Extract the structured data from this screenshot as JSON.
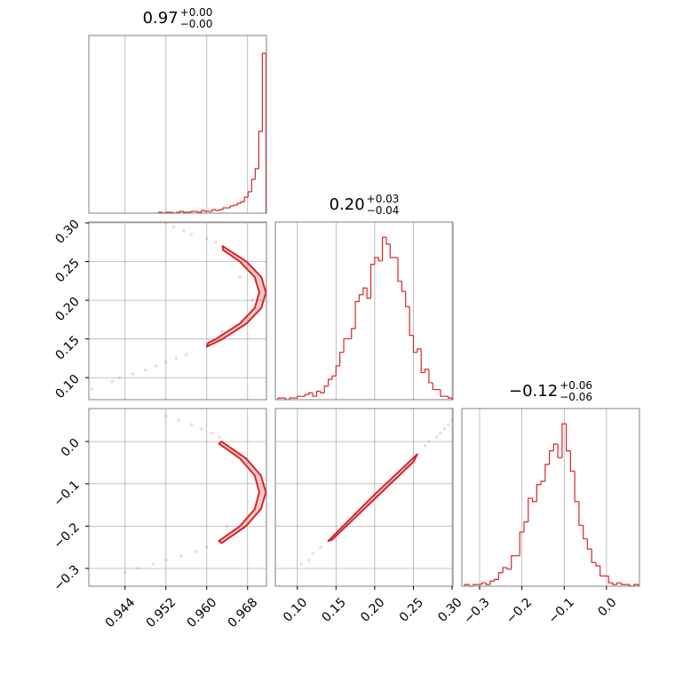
{
  "chart_data": {
    "type": "corner",
    "color": "#d62728",
    "grid": true,
    "parameters": [
      {
        "title": {
          "median": "0.97",
          "plus": "+0.00",
          "minus": "−0.00"
        },
        "lim": [
          0.9369,
          0.9717
        ],
        "ticks": [
          0.944,
          0.952,
          {
            "value": 0.96,
            "label": "0.960"
          },
          0.968
        ],
        "bins": [
          0.9506,
          0.9513,
          0.952,
          0.9527,
          0.9534,
          0.9541,
          0.9548,
          0.9555,
          0.9562,
          0.9569,
          0.9576,
          0.9583,
          0.959,
          0.9597,
          0.9604,
          0.9611,
          0.9618,
          0.9625,
          0.9632,
          0.9639,
          0.9646,
          0.9653,
          0.966,
          0.9667,
          0.9674,
          0.9681,
          0.9688,
          0.9695,
          0.9702,
          0.9709,
          0.9716
        ],
        "counts": [
          1,
          0,
          1,
          1,
          0,
          1,
          2,
          1,
          1,
          2,
          2,
          1,
          3,
          2,
          2,
          4,
          3,
          4,
          6,
          6,
          8,
          9,
          11,
          13,
          18,
          24,
          38,
          50,
          92,
          180
        ],
        "count_lim": [
          0,
          200
        ]
      },
      {
        "title": {
          "median": "0.20",
          "plus": "+0.03",
          "minus": "−0.04"
        },
        "lim": [
          0.0716,
          0.3011
        ],
        "ticks": [
          {
            "value": 0.1,
            "label": "0.10"
          },
          0.15,
          {
            "value": 0.2,
            "label": "0.20"
          },
          0.25,
          {
            "value": 0.3,
            "label": "0.30"
          }
        ],
        "bins": [
          0.075,
          0.08,
          0.085,
          0.09,
          0.095,
          0.1,
          0.105,
          0.11,
          0.115,
          0.12,
          0.125,
          0.13,
          0.135,
          0.14,
          0.145,
          0.15,
          0.155,
          0.16,
          0.165,
          0.17,
          0.175,
          0.18,
          0.185,
          0.19,
          0.195,
          0.2,
          0.205,
          0.21,
          0.215,
          0.22,
          0.225,
          0.23,
          0.235,
          0.24,
          0.245,
          0.25,
          0.255,
          0.26,
          0.265,
          0.27,
          0.275,
          0.28,
          0.285,
          0.29,
          0.295,
          0.3
        ],
        "counts": [
          1,
          1,
          0,
          1,
          1,
          2,
          2,
          3,
          4,
          2,
          5,
          4,
          8,
          12,
          14,
          20,
          28,
          36,
          36,
          42,
          58,
          62,
          66,
          60,
          80,
          84,
          82,
          96,
          92,
          84,
          84,
          70,
          64,
          55,
          38,
          28,
          30,
          16,
          18,
          10,
          6,
          6,
          2,
          2,
          1
        ],
        "count_lim": [
          0,
          105
        ]
      },
      {
        "title": {
          "median": "−0.12",
          "plus": "+0.06",
          "minus": "−0.06"
        },
        "lim": [
          -0.342,
          0.078
        ],
        "ticks": [
          {
            "value": -0.3,
            "label": "−0.3"
          },
          {
            "value": -0.2,
            "label": "−0.2"
          },
          {
            "value": -0.1,
            "label": "−0.1"
          },
          {
            "value": 0,
            "label": "0.0"
          }
        ],
        "bins": [
          -0.335,
          -0.325,
          -0.315,
          -0.305,
          -0.295,
          -0.285,
          -0.275,
          -0.265,
          -0.255,
          -0.245,
          -0.235,
          -0.225,
          -0.215,
          -0.205,
          -0.195,
          -0.185,
          -0.175,
          -0.165,
          -0.155,
          -0.145,
          -0.135,
          -0.125,
          -0.115,
          -0.105,
          -0.095,
          -0.085,
          -0.075,
          -0.065,
          -0.055,
          -0.045,
          -0.035,
          -0.025,
          -0.015,
          -0.005,
          0.005,
          0.015,
          0.025,
          0.035,
          0.045,
          0.055,
          0.065,
          0.075
        ],
        "counts": [
          1,
          0,
          1,
          1,
          2,
          1,
          3,
          4,
          8,
          11,
          10,
          18,
          18,
          32,
          38,
          52,
          50,
          60,
          62,
          72,
          80,
          84,
          76,
          96,
          80,
          68,
          50,
          36,
          28,
          22,
          14,
          12,
          6,
          6,
          2,
          1,
          2,
          1,
          1,
          0,
          1
        ],
        "count_lim": [
          0,
          105
        ]
      }
    ],
    "pairs": [
      {
        "scatter": {
          "x": [
            0.952,
            0.9535,
            0.9555,
            0.957,
            0.96,
            0.9618,
            0.956,
            0.954,
            0.952,
            0.95,
            0.948,
            0.9455,
            0.943,
            0.9415,
            0.9375,
            0.969,
            0.9665,
            0.963
          ],
          "y": [
            0.3,
            0.295,
            0.29,
            0.285,
            0.28,
            0.275,
            0.13,
            0.125,
            0.12,
            0.115,
            0.11,
            0.105,
            0.1,
            0.095,
            0.085,
            0.2,
            0.23,
            0.16
          ]
        },
        "contour": {
          "x": [
            0.9631,
            0.9678,
            0.9707,
            0.9716,
            0.9707,
            0.9678,
            0.9631,
            0.96,
            0.9603,
            0.9618,
            0.9665,
            0.9694,
            0.9703,
            0.9694,
            0.9665,
            0.9632
          ],
          "y": [
            0.27,
            0.25,
            0.23,
            0.21,
            0.19,
            0.17,
            0.15,
            0.14,
            0.145,
            0.15,
            0.17,
            0.19,
            0.21,
            0.23,
            0.25,
            0.265
          ]
        }
      },
      {
        "scatter": {
          "x": [
            0.952,
            0.9545,
            0.957,
            0.959,
            0.961,
            0.9625,
            0.96,
            0.958,
            0.955,
            0.952,
            0.9495,
            0.9465,
            0.944,
            0.9665,
            0.964
          ],
          "y": [
            0.06,
            0.05,
            0.04,
            0.03,
            0.02,
            0.01,
            -0.25,
            -0.26,
            -0.27,
            -0.28,
            -0.29,
            -0.3,
            -0.31,
            -0.03,
            -0.2
          ]
        },
        "contour": {
          "x": [
            0.9629,
            0.9677,
            0.9706,
            0.9716,
            0.9706,
            0.9677,
            0.9629,
            0.9624,
            0.9665,
            0.9694,
            0.9703,
            0.9694,
            0.9665,
            0.9624
          ],
          "y": [
            0,
            -0.04,
            -0.08,
            -0.12,
            -0.16,
            -0.2,
            -0.24,
            -0.235,
            -0.2,
            -0.16,
            -0.12,
            -0.08,
            -0.04,
            -0.005
          ]
        }
      },
      {
        "scatter": {
          "x": [
            0.105,
            0.115,
            0.12,
            0.13,
            0.265,
            0.27,
            0.28,
            0.285,
            0.29,
            0.295,
            0.3,
            0.175,
            0.22,
            0.24
          ],
          "y": [
            -0.29,
            -0.28,
            -0.265,
            -0.25,
            -0.01,
            0,
            0.01,
            0.02,
            0.03,
            0.04,
            0.05,
            -0.17,
            -0.095,
            -0.06
          ]
        },
        "contour": {
          "x": [
            0.14,
            0.2,
            0.255,
            0.25,
            0.19,
            0.145
          ],
          "y": [
            -0.235,
            -0.125,
            -0.03,
            -0.048,
            -0.153,
            -0.232
          ]
        }
      }
    ]
  }
}
